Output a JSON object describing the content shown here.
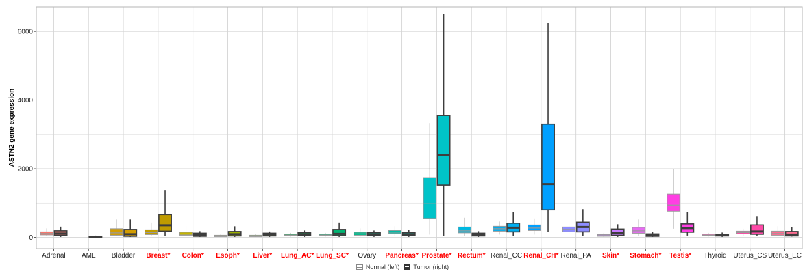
{
  "chart_data": {
    "type": "boxplot",
    "ylabel": "ASTN2 gene expression",
    "xlabel": "",
    "ylim": [
      -330,
      6720
    ],
    "yticks": [
      0,
      2000,
      4000,
      6000
    ],
    "grid": true,
    "colors": {
      "significant_label": "#ff0000",
      "normal_label": "#222222",
      "tumor_outline": "#3d3d3d",
      "normal_outline": "#9a9a9a",
      "gridline": "#d4d4d4",
      "panel_border": "#b5b5b5"
    },
    "legend": {
      "position": "bottom",
      "items": [
        {
          "label": "Normal (left)",
          "style": "normal"
        },
        {
          "label": "Tumor (right)",
          "style": "tumor"
        }
      ]
    },
    "categories": [
      {
        "label": "Adrenal",
        "significant": false,
        "color": "#f8766d",
        "normal": {
          "min": 30,
          "q1": 70,
          "median": 110,
          "q3": 160,
          "max": 260
        },
        "tumor": {
          "min": 10,
          "q1": 60,
          "median": 110,
          "q3": 190,
          "max": 310
        }
      },
      {
        "label": "AML",
        "significant": false,
        "color": "#e7861b",
        "normal": null,
        "tumor": {
          "min": 0,
          "q1": 5,
          "median": 15,
          "q3": 30,
          "max": 50
        }
      },
      {
        "label": "Bladder",
        "significant": false,
        "color": "#d29c00",
        "normal": {
          "min": 30,
          "q1": 60,
          "median": 130,
          "q3": 250,
          "max": 520
        },
        "tumor": {
          "min": 10,
          "q1": 30,
          "median": 90,
          "q3": 230,
          "max": 520
        }
      },
      {
        "label": "Breast*",
        "significant": true,
        "color": "#bf9b00",
        "normal": {
          "min": 30,
          "q1": 80,
          "median": 140,
          "q3": 220,
          "max": 430
        },
        "tumor": {
          "min": 40,
          "q1": 180,
          "median": 350,
          "q3": 660,
          "max": 1380
        }
      },
      {
        "label": "Colon*",
        "significant": true,
        "color": "#c6b600",
        "normal": {
          "min": 20,
          "q1": 60,
          "median": 90,
          "q3": 150,
          "max": 320
        },
        "tumor": {
          "min": 10,
          "q1": 30,
          "median": 70,
          "q3": 120,
          "max": 180
        }
      },
      {
        "label": "Esoph*",
        "significant": true,
        "color": "#9bb000",
        "normal": {
          "min": 10,
          "q1": 20,
          "median": 40,
          "q3": 60,
          "max": 90
        },
        "tumor": {
          "min": 10,
          "q1": 40,
          "median": 90,
          "q3": 170,
          "max": 320
        }
      },
      {
        "label": "Liver*",
        "significant": true,
        "color": "#5db000",
        "normal": {
          "min": 10,
          "q1": 20,
          "median": 35,
          "q3": 60,
          "max": 90
        },
        "tumor": {
          "min": 10,
          "q1": 40,
          "median": 80,
          "q3": 120,
          "max": 170
        }
      },
      {
        "label": "Lung_AC*",
        "significant": true,
        "color": "#00b050",
        "normal": {
          "min": 20,
          "q1": 40,
          "median": 60,
          "q3": 90,
          "max": 130
        },
        "tumor": {
          "min": 10,
          "q1": 50,
          "median": 90,
          "q3": 140,
          "max": 200
        }
      },
      {
        "label": "Lung_SC*",
        "significant": true,
        "color": "#00b472",
        "normal": {
          "min": 20,
          "q1": 40,
          "median": 60,
          "q3": 90,
          "max": 130
        },
        "tumor": {
          "min": 10,
          "q1": 50,
          "median": 100,
          "q3": 230,
          "max": 430
        }
      },
      {
        "label": "Ovary",
        "significant": false,
        "color": "#00bc8e",
        "normal": {
          "min": 20,
          "q1": 60,
          "median": 100,
          "q3": 150,
          "max": 260
        },
        "tumor": {
          "min": 10,
          "q1": 50,
          "median": 90,
          "q3": 140,
          "max": 200
        }
      },
      {
        "label": "Pancreas*",
        "significant": true,
        "color": "#00bca7",
        "normal": {
          "min": 40,
          "q1": 110,
          "median": 150,
          "q3": 200,
          "max": 320
        },
        "tumor": {
          "min": 10,
          "q1": 50,
          "median": 90,
          "q3": 140,
          "max": 210
        }
      },
      {
        "label": "Prostate*",
        "significant": true,
        "color": "#00c3c8",
        "normal": {
          "min": 80,
          "q1": 550,
          "median": 980,
          "q3": 1740,
          "max": 3330
        },
        "tumor": {
          "min": 40,
          "q1": 1520,
          "median": 2400,
          "q3": 3550,
          "max": 6520
        }
      },
      {
        "label": "Rectum*",
        "significant": true,
        "color": "#00b8e0",
        "normal": {
          "min": 40,
          "q1": 130,
          "median": 190,
          "q3": 300,
          "max": 570
        },
        "tumor": {
          "min": 10,
          "q1": 40,
          "median": 70,
          "q3": 120,
          "max": 180
        }
      },
      {
        "label": "Renal_CC",
        "significant": false,
        "color": "#00aef0",
        "normal": {
          "min": 80,
          "q1": 180,
          "median": 250,
          "q3": 320,
          "max": 460
        },
        "tumor": {
          "min": 30,
          "q1": 160,
          "median": 280,
          "q3": 410,
          "max": 730
        }
      },
      {
        "label": "Renal_CH*",
        "significant": true,
        "color": "#00a0ff",
        "normal": {
          "min": 80,
          "q1": 200,
          "median": 270,
          "q3": 360,
          "max": 550
        },
        "tumor": {
          "min": 150,
          "q1": 800,
          "median": 1550,
          "q3": 3300,
          "max": 6260
        }
      },
      {
        "label": "Renal_PA",
        "significant": false,
        "color": "#8c8cff",
        "normal": {
          "min": 80,
          "q1": 160,
          "median": 230,
          "q3": 300,
          "max": 420
        },
        "tumor": {
          "min": 30,
          "q1": 160,
          "median": 300,
          "q3": 440,
          "max": 820
        }
      },
      {
        "label": "Skin*",
        "significant": true,
        "color": "#c77cff",
        "normal": {
          "min": 10,
          "q1": 30,
          "median": 50,
          "q3": 80,
          "max": 120
        },
        "tumor": {
          "min": 10,
          "q1": 60,
          "median": 130,
          "q3": 240,
          "max": 380
        }
      },
      {
        "label": "Stomach*",
        "significant": true,
        "color": "#e76bf3",
        "normal": {
          "min": 40,
          "q1": 120,
          "median": 190,
          "q3": 290,
          "max": 520
        },
        "tumor": {
          "min": 10,
          "q1": 30,
          "median": 60,
          "q3": 100,
          "max": 160
        }
      },
      {
        "label": "Testis*",
        "significant": true,
        "color": "#ff3ee3",
        "normal": {
          "min": 250,
          "q1": 760,
          "median": 940,
          "q3": 1260,
          "max": 2000
        },
        "tumor": {
          "min": 50,
          "q1": 150,
          "median": 270,
          "q3": 390,
          "max": 730
        }
      },
      {
        "label": "Thyroid",
        "significant": false,
        "color": "#ff62bc",
        "normal": {
          "min": 20,
          "q1": 40,
          "median": 60,
          "q3": 90,
          "max": 130
        },
        "tumor": {
          "min": 10,
          "q1": 40,
          "median": 60,
          "q3": 90,
          "max": 140
        }
      },
      {
        "label": "Uterus_CS",
        "significant": false,
        "color": "#ff4aa8",
        "normal": {
          "min": 40,
          "q1": 100,
          "median": 140,
          "q3": 180,
          "max": 250
        },
        "tumor": {
          "min": 30,
          "q1": 90,
          "median": 170,
          "q3": 360,
          "max": 620
        }
      },
      {
        "label": "Uterus_EC",
        "significant": false,
        "color": "#ff6c91",
        "normal": {
          "min": 30,
          "q1": 60,
          "median": 110,
          "q3": 180,
          "max": 320
        },
        "tumor": {
          "min": 20,
          "q1": 40,
          "median": 80,
          "q3": 170,
          "max": 300
        }
      }
    ]
  }
}
